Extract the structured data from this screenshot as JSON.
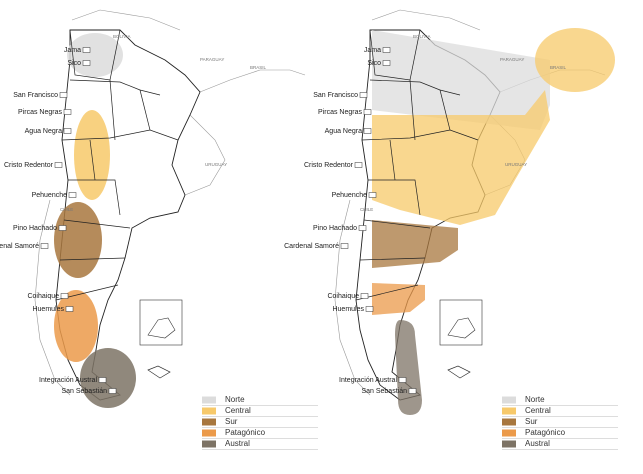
{
  "countries": [
    "BOLIVIA",
    "PARAGUAY",
    "BRASIL",
    "URUGUAY",
    "CHILE"
  ],
  "passes": [
    "Jama",
    "Sico",
    "San Francisco",
    "Pircas Negras",
    "Agua Negra",
    "Cristo Redentor",
    "Pehuenche",
    "Pino Hachado",
    "Cardenal Samoré",
    "Coihaique",
    "Huemules",
    "Integración Austral",
    "San Sebastián"
  ],
  "legend": [
    {
      "label": "Norte",
      "color": "#dcdcdc"
    },
    {
      "label": "Central",
      "color": "#f7c96a"
    },
    {
      "label": "Sur",
      "color": "#a8773e"
    },
    {
      "label": "Patagónico",
      "color": "#eb9a4a"
    },
    {
      "label": "Austral",
      "color": "#7d7365"
    }
  ]
}
